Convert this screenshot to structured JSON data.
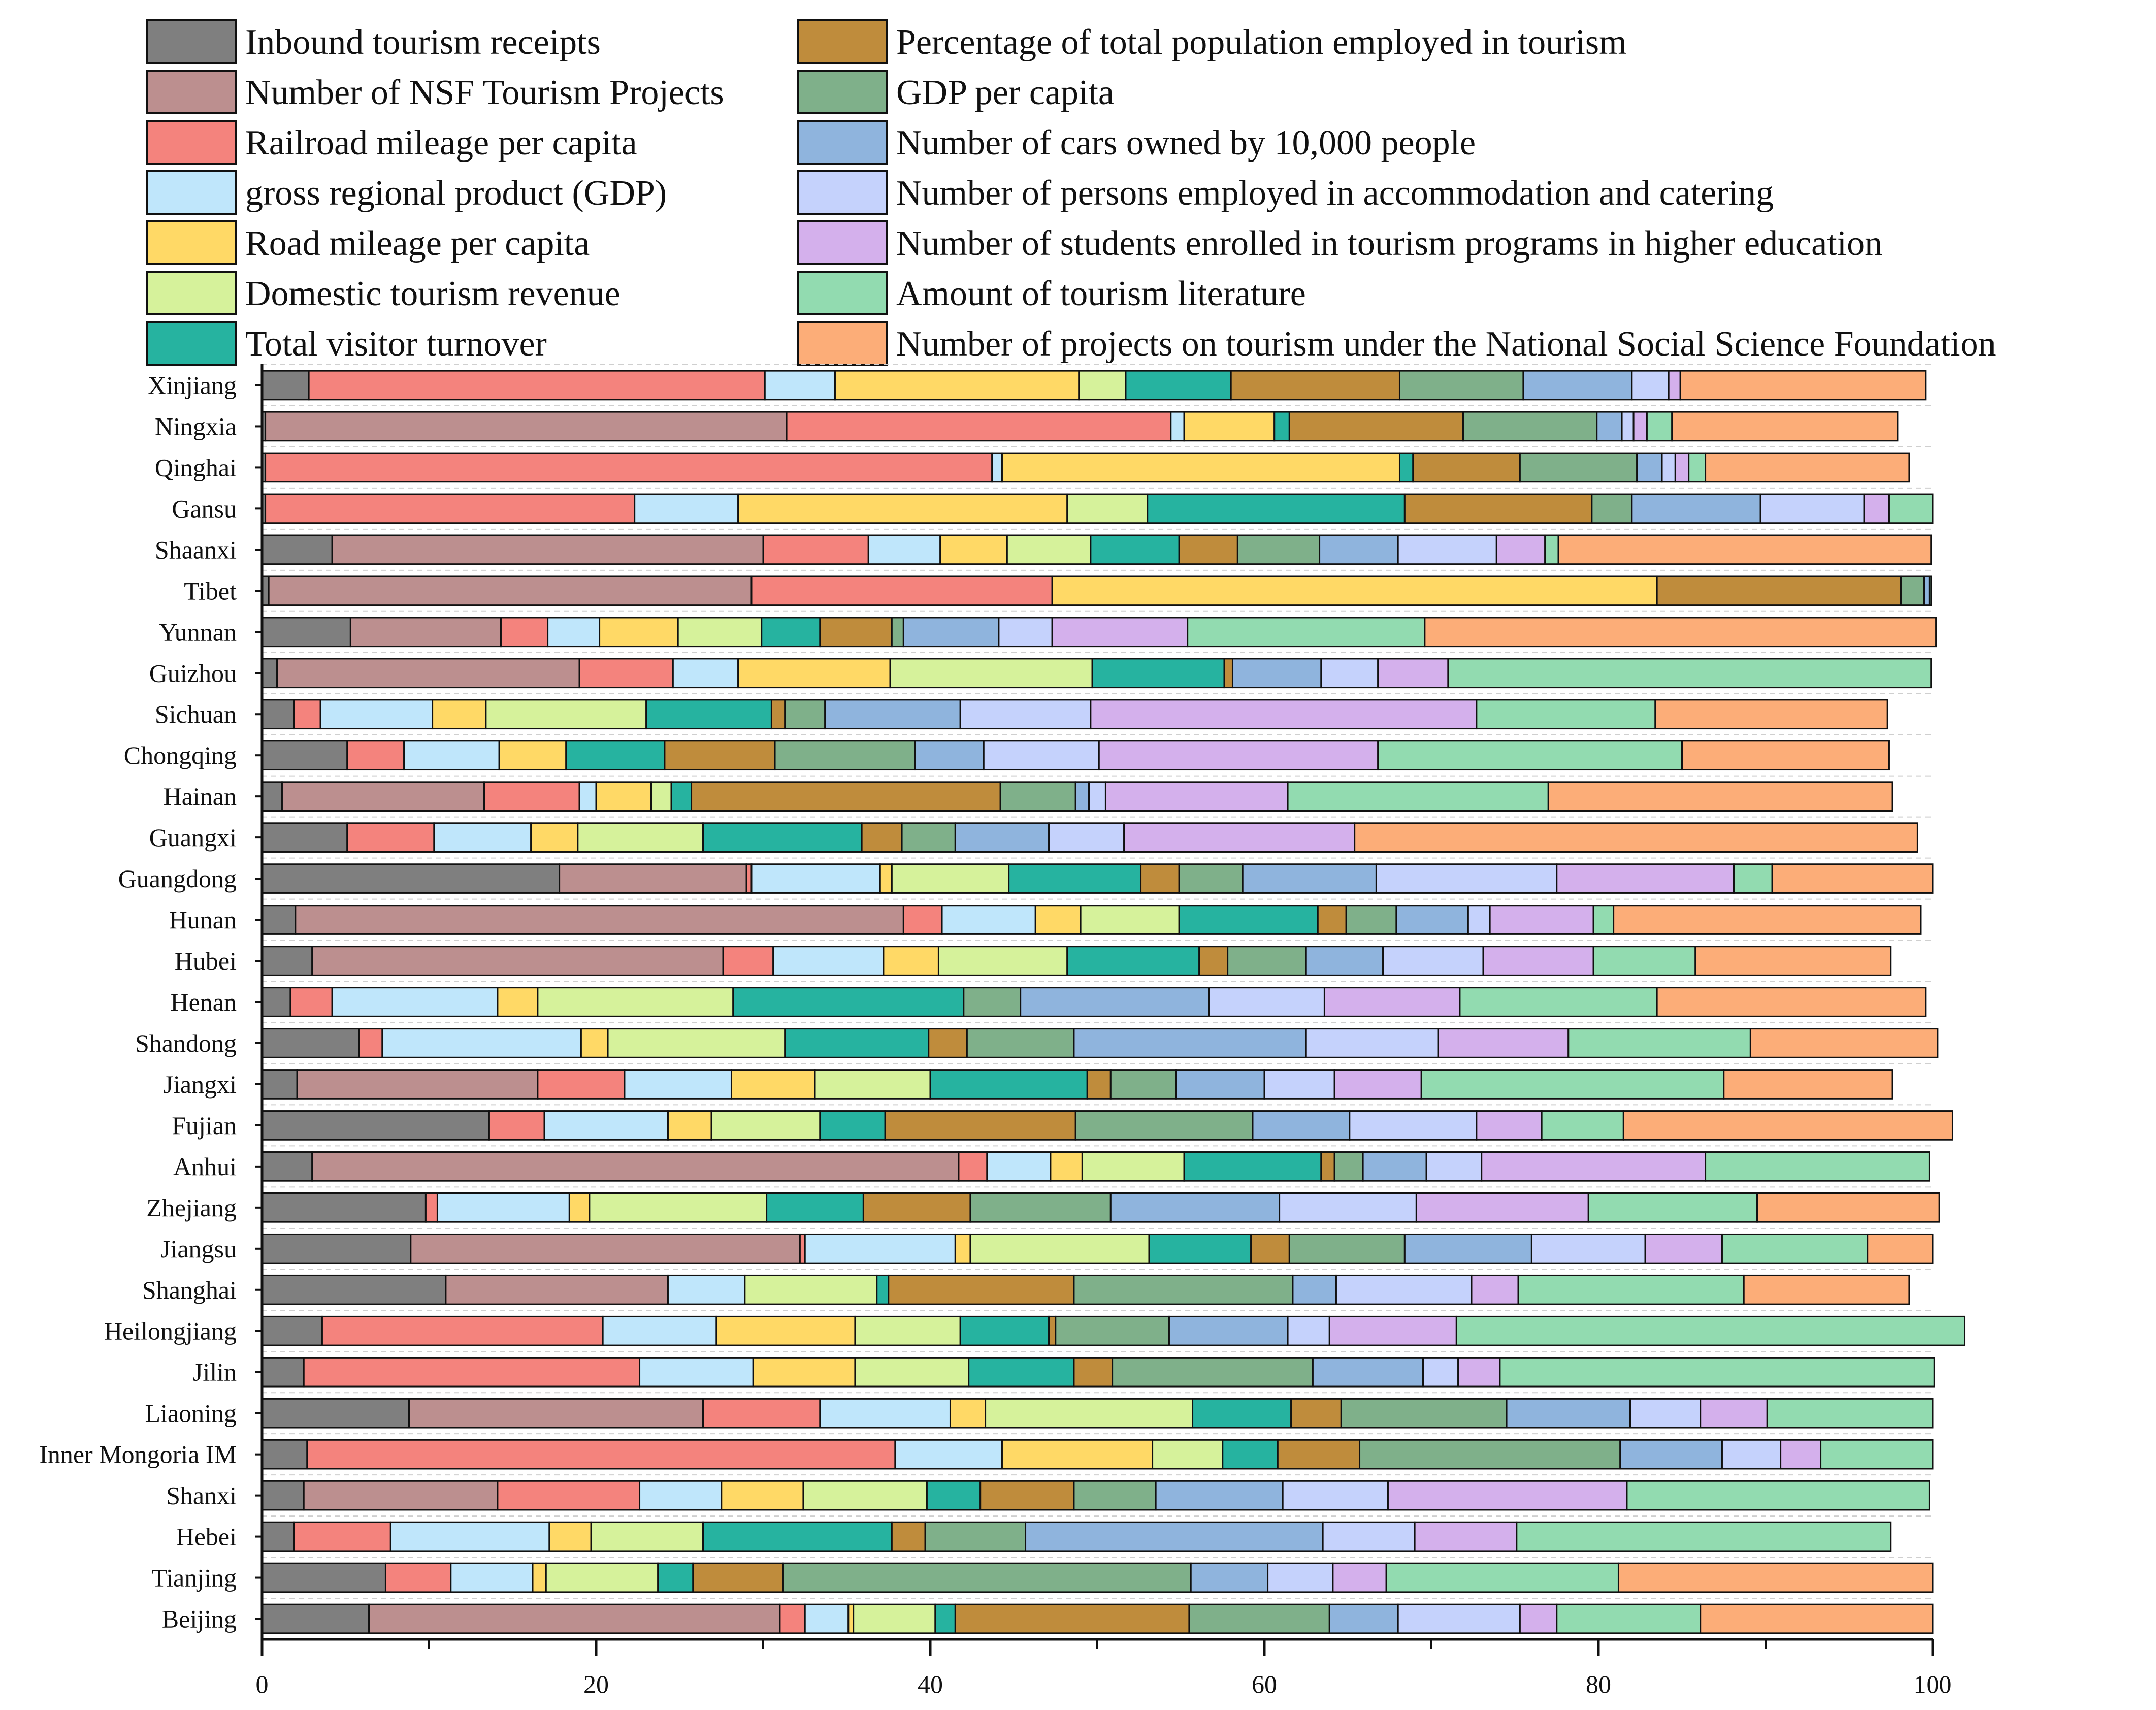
{
  "chart_data": {
    "type": "bar",
    "orientation": "horizontal",
    "stacked": true,
    "title": "",
    "xlabel": "",
    "ylabel": "",
    "xlim": [
      0,
      100
    ],
    "xticks": [
      "0",
      "20",
      "40",
      "60",
      "80",
      "100"
    ],
    "legend_position": "top",
    "categories": [
      "Xinjiang",
      "Ningxia",
      "Qinghai",
      "Gansu",
      "Shaanxi",
      "Tibet",
      "Yunnan",
      "Guizhou",
      "Sichuan",
      "Chongqing",
      "Hainan",
      "Guangxi",
      "Guangdong",
      "Hunan",
      "Hubei",
      "Henan",
      "Shandong",
      "Jiangxi",
      "Fujian",
      "Anhui",
      "Zhejiang",
      "Jiangsu",
      "Shanghai",
      "Heilongjiang",
      "Jilin",
      "Liaoning",
      "Inner Mongoria IM",
      "Shanxi",
      "Hebei",
      "Tianjing",
      "Beijing"
    ],
    "series": [
      {
        "name": "Inbound tourism receipts",
        "color": "#7f7f7f",
        "values": [
          2.8,
          0.2,
          0.2,
          0.2,
          4.2,
          0.4,
          5.3,
          0.9,
          1.9,
          5.1,
          1.2,
          5.1,
          17.8,
          2.0,
          3.0,
          1.7,
          5.8,
          2.1,
          13.6,
          3.0,
          9.8,
          8.9,
          11.0,
          3.6,
          2.5,
          8.8,
          2.7,
          2.5,
          1.9,
          7.4,
          6.4
        ]
      },
      {
        "name": "Number of NSF Tourism Projects",
        "color": "#bc8f8f",
        "values": [
          0,
          31.2,
          0,
          0,
          25.8,
          28.9,
          9.0,
          18.1,
          0,
          0,
          12.1,
          0,
          11.2,
          36.4,
          24.6,
          0,
          0,
          14.4,
          0,
          38.7,
          0,
          23.3,
          13.3,
          0,
          0,
          17.6,
          0,
          11.6,
          0,
          0,
          24.6
        ]
      },
      {
        "name": "Railroad mileage per capita",
        "color": "#f4837d",
        "values": [
          27.3,
          23.0,
          43.5,
          22.1,
          6.3,
          18.0,
          2.8,
          5.6,
          1.6,
          3.4,
          5.7,
          5.2,
          0.3,
          2.3,
          3.0,
          2.5,
          1.4,
          5.2,
          3.3,
          1.7,
          0.7,
          0.3,
          0,
          16.8,
          20.1,
          7.0,
          35.2,
          8.5,
          5.8,
          3.9,
          1.5
        ]
      },
      {
        "name": "gross regional product (GDP)",
        "color": "#bfe6fb",
        "values": [
          4.2,
          0.8,
          0.6,
          6.2,
          4.3,
          0,
          3.1,
          3.9,
          6.7,
          5.7,
          1.0,
          5.8,
          7.7,
          5.6,
          6.6,
          9.9,
          11.9,
          6.4,
          7.4,
          3.8,
          7.9,
          9.0,
          4.6,
          6.8,
          6.8,
          7.8,
          6.4,
          4.9,
          9.5,
          4.9,
          2.6
        ]
      },
      {
        "name": "Road mileage per capita",
        "color": "#ffd966",
        "values": [
          14.6,
          5.4,
          23.8,
          19.7,
          4.0,
          36.2,
          4.7,
          9.1,
          3.2,
          4.0,
          3.3,
          2.8,
          0.7,
          2.7,
          3.3,
          2.4,
          1.6,
          5.0,
          2.6,
          1.9,
          1.2,
          0.9,
          0,
          8.3,
          6.1,
          2.1,
          9.0,
          4.9,
          2.5,
          0.8,
          0.3
        ]
      },
      {
        "name": "Domestic tourism revenue",
        "color": "#d6f29b",
        "values": [
          2.8,
          0,
          0,
          4.8,
          5.0,
          0,
          5.0,
          12.1,
          9.6,
          0,
          1.2,
          7.5,
          7.0,
          5.9,
          7.7,
          11.7,
          10.6,
          6.9,
          6.5,
          6.1,
          10.6,
          10.7,
          7.9,
          6.3,
          6.8,
          12.4,
          4.2,
          7.4,
          6.7,
          6.7,
          4.9
        ]
      },
      {
        "name": "Total visitor turnover",
        "color": "#26b3a0",
        "values": [
          6.3,
          0.9,
          0.8,
          15.4,
          5.3,
          0,
          3.5,
          7.9,
          7.5,
          5.9,
          1.2,
          9.5,
          7.9,
          8.3,
          7.9,
          13.8,
          8.6,
          9.4,
          3.9,
          8.2,
          5.8,
          6.1,
          0.7,
          5.3,
          6.3,
          5.9,
          3.3,
          3.2,
          11.3,
          2.1,
          1.2
        ]
      },
      {
        "name": "Percentage of total population employed in tourism",
        "color": "#bf8c3c",
        "values": [
          10.1,
          10.4,
          6.4,
          11.2,
          3.5,
          14.6,
          4.3,
          0.5,
          0.8,
          6.6,
          18.5,
          2.4,
          2.3,
          1.7,
          1.7,
          0,
          2.3,
          1.4,
          11.4,
          0.8,
          6.4,
          2.3,
          11.1,
          0.4,
          2.3,
          3.0,
          4.9,
          5.6,
          2.0,
          5.4,
          14.0
        ]
      },
      {
        "name": "GDP per capita",
        "color": "#7fb08a",
        "values": [
          7.4,
          8.0,
          7.0,
          2.4,
          4.9,
          1.4,
          0.7,
          0,
          2.4,
          8.4,
          4.5,
          3.2,
          3.8,
          3.0,
          4.7,
          3.4,
          6.4,
          3.9,
          10.6,
          1.7,
          8.4,
          6.9,
          13.1,
          6.8,
          12.0,
          9.9,
          15.6,
          4.9,
          6.0,
          24.4,
          8.4
        ]
      },
      {
        "name": "Number of cars owned by 10,000 people",
        "color": "#8fb4dd",
        "values": [
          6.5,
          1.5,
          1.5,
          7.7,
          4.7,
          0.3,
          5.7,
          5.3,
          8.1,
          4.1,
          0.8,
          5.6,
          8.0,
          4.3,
          4.6,
          11.3,
          13.9,
          5.3,
          5.8,
          3.8,
          10.1,
          7.6,
          2.6,
          7.1,
          6.6,
          7.4,
          6.1,
          7.6,
          17.8,
          4.6,
          4.1
        ]
      },
      {
        "name": "Number of persons employed in accommodation and catering",
        "color": "#c5d2fc",
        "values": [
          2.2,
          0.7,
          0.8,
          6.2,
          5.9,
          0,
          3.2,
          3.4,
          7.8,
          6.9,
          1.0,
          4.5,
          10.8,
          1.3,
          6.0,
          6.9,
          7.9,
          4.2,
          7.6,
          3.3,
          8.2,
          6.8,
          8.1,
          2.5,
          2.1,
          4.2,
          3.5,
          6.3,
          5.5,
          3.9,
          7.3
        ]
      },
      {
        "name": "Number of students enrolled in tourism programs in higher education",
        "color": "#d4b0ec",
        "values": [
          0.7,
          0.8,
          0.8,
          1.5,
          2.9,
          0,
          8.1,
          4.2,
          23.1,
          16.7,
          10.9,
          13.8,
          10.6,
          6.2,
          6.6,
          8.1,
          7.8,
          5.2,
          3.9,
          13.4,
          10.3,
          4.6,
          2.8,
          7.6,
          2.5,
          4.0,
          2.4,
          14.3,
          6.1,
          3.2,
          2.2
        ]
      },
      {
        "name": "Amount of tourism literature",
        "color": "#92dbb0",
        "values": [
          0,
          1.5,
          1.0,
          2.6,
          0.8,
          0.1,
          14.2,
          28.9,
          10.7,
          18.2,
          15.6,
          0,
          2.3,
          1.2,
          6.1,
          11.8,
          10.9,
          18.1,
          4.9,
          13.4,
          10.1,
          8.7,
          13.5,
          30.4,
          26.0,
          9.9,
          6.7,
          18.1,
          22.4,
          13.9,
          8.6
        ]
      },
      {
        "name": "Number of projects on tourism under the National Social Science Foundation",
        "color": "#fcad78",
        "values": [
          14.7,
          13.5,
          12.2,
          0,
          22.3,
          0,
          30.6,
          0,
          13.9,
          12.4,
          20.6,
          33.7,
          9.6,
          18.4,
          11.7,
          16.1,
          11.2,
          10.1,
          19.7,
          0,
          10.9,
          3.9,
          9.9,
          0,
          0,
          0,
          0,
          0,
          0,
          18.8,
          13.9
        ]
      }
    ]
  }
}
